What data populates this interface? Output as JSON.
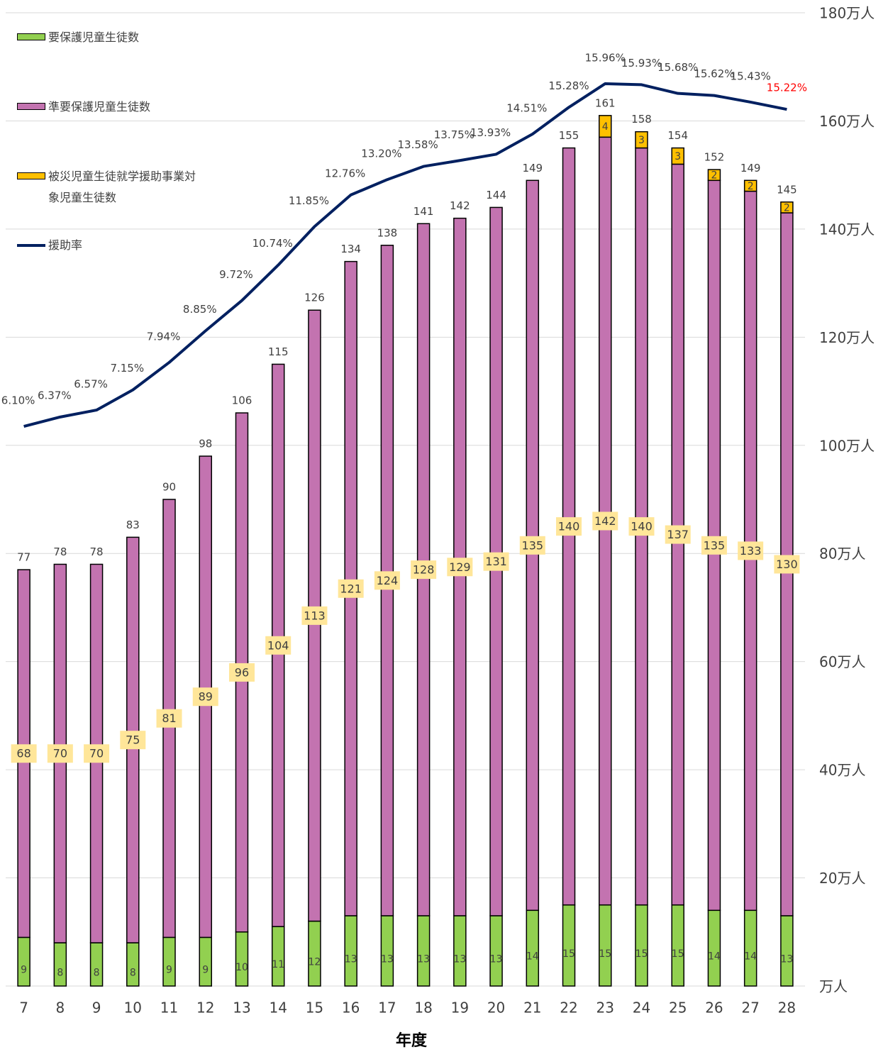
{
  "chart_data": {
    "type": "bar",
    "stacked": true,
    "x_title": "年度",
    "categories": [
      "7",
      "8",
      "9",
      "10",
      "11",
      "12",
      "13",
      "14",
      "15",
      "16",
      "17",
      "18",
      "19",
      "20",
      "21",
      "22",
      "23",
      "24",
      "25",
      "26",
      "27",
      "28"
    ],
    "series": [
      {
        "name": "要保護児童生徒数",
        "type": "bar",
        "color": "#92d050",
        "values": [
          9,
          8,
          8,
          8,
          9,
          9,
          10,
          11,
          12,
          13,
          13,
          13,
          13,
          13,
          14,
          15,
          15,
          15,
          15,
          14,
          14,
          13
        ]
      },
      {
        "name": "準要保護児童生徒数",
        "type": "bar",
        "color": "#c373b0",
        "label_box_color": "#ffe699",
        "values": [
          68,
          70,
          70,
          75,
          81,
          89,
          96,
          104,
          113,
          121,
          124,
          128,
          129,
          131,
          135,
          140,
          142,
          140,
          137,
          135,
          133,
          130
        ]
      },
      {
        "name": "被災児童生徒就学援助事業対象児童生徒数",
        "type": "bar",
        "color": "#ffc000",
        "values": [
          null,
          null,
          null,
          null,
          null,
          null,
          null,
          null,
          null,
          null,
          null,
          null,
          null,
          null,
          null,
          null,
          4,
          3,
          3,
          2,
          2,
          2
        ]
      },
      {
        "name": "援助率",
        "type": "line",
        "axis": "y2",
        "color": "#002060",
        "values": [
          6.1,
          6.37,
          6.57,
          7.15,
          7.94,
          8.85,
          9.72,
          10.74,
          11.85,
          12.76,
          13.2,
          13.58,
          13.75,
          13.93,
          14.51,
          15.28,
          15.96,
          15.93,
          15.68,
          15.62,
          15.43,
          15.22
        ],
        "value_labels": [
          "6.10%",
          "6.37%",
          "6.57%",
          "7.15%",
          "7.94%",
          "8.85%",
          "9.72%",
          "10.74%",
          "11.85%",
          "12.76%",
          "13.20%",
          "13.58%",
          "13.75%",
          "13.93%",
          "14.51%",
          "15.28%",
          "15.96%",
          "15.93%",
          "15.68%",
          "15.62%",
          "15.43%",
          "15.22%"
        ],
        "last_label_color": "#ff0000"
      }
    ],
    "totals": [
      77,
      78,
      78,
      83,
      90,
      98,
      106,
      115,
      126,
      134,
      138,
      141,
      142,
      144,
      149,
      155,
      161,
      158,
      154,
      152,
      149,
      145
    ],
    "ylim": [
      0,
      180
    ],
    "yticks": [
      {
        "value": 0,
        "label": "万人"
      },
      {
        "value": 20,
        "label": "20万人"
      },
      {
        "value": 40,
        "label": "40万人"
      },
      {
        "value": 60,
        "label": "60万人"
      },
      {
        "value": 80,
        "label": "80万人"
      },
      {
        "value": 100,
        "label": "100万人"
      },
      {
        "value": 120,
        "label": "120万人"
      },
      {
        "value": 140,
        "label": "140万人"
      },
      {
        "value": 160,
        "label": "160万人"
      },
      {
        "value": 180,
        "label": "180万人"
      }
    ],
    "y2lim": [
      -10,
      18
    ],
    "grid": true,
    "legend": "top-left"
  }
}
